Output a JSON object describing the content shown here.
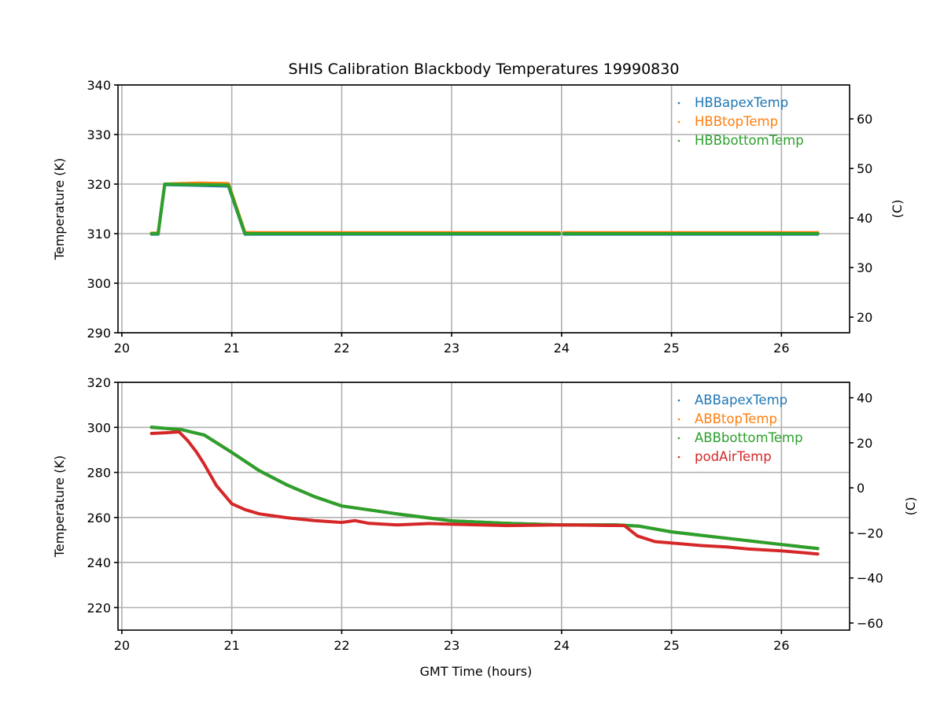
{
  "chart_data": [
    {
      "type": "line",
      "title": "SHIS Calibration Blackbody Temperatures 19990830",
      "xlabel": "",
      "ylabel": "Temperature (K)",
      "ylabel_right": "(C)",
      "xlim": [
        19.965,
        26.62
      ],
      "ylim": [
        290,
        340
      ],
      "xticks": [
        "20",
        "21",
        "22",
        "23",
        "24",
        "25",
        "26"
      ],
      "yticks": [
        "290",
        "300",
        "310",
        "320",
        "330",
        "340"
      ],
      "yticks_right": [
        "20",
        "30",
        "40",
        "50",
        "60"
      ],
      "grid": true,
      "legend_position": "top-right",
      "series": [
        {
          "name": "HBBapexTemp",
          "color": "#1f77b4",
          "x": [
            20.27,
            20.33,
            20.39,
            20.6,
            20.97,
            21.12,
            23.98,
            24.02,
            26.33
          ],
          "y": [
            309.9,
            309.9,
            319.9,
            319.8,
            319.6,
            309.9,
            309.9,
            309.9,
            309.9
          ]
        },
        {
          "name": "HBBtopTemp",
          "color": "#ff7f0e",
          "x": [
            20.27,
            20.33,
            20.39,
            20.7,
            20.97,
            21.12,
            23.98,
            24.02,
            26.33
          ],
          "y": [
            310.1,
            310.1,
            320.0,
            320.2,
            320.1,
            310.2,
            310.2,
            310.2,
            310.2
          ]
        },
        {
          "name": "HBBbottomTemp",
          "color": "#2ca02c",
          "x": [
            20.27,
            20.33,
            20.39,
            20.6,
            20.97,
            21.12,
            23.98,
            24.02,
            26.33
          ],
          "y": [
            310.0,
            310.0,
            320.0,
            319.9,
            319.8,
            310.0,
            310.0,
            310.0,
            310.0
          ]
        }
      ]
    },
    {
      "type": "line",
      "title": "",
      "xlabel": "GMT Time (hours)",
      "ylabel": "Temperature (K)",
      "ylabel_right": "(C)",
      "xlim": [
        19.965,
        26.62
      ],
      "ylim": [
        210,
        320
      ],
      "xticks": [
        "20",
        "21",
        "22",
        "23",
        "24",
        "25",
        "26"
      ],
      "yticks": [
        "220",
        "240",
        "260",
        "280",
        "300",
        "320"
      ],
      "yticks_right": [
        "−60",
        "−40",
        "−20",
        "0",
        "20",
        "40"
      ],
      "grid": true,
      "legend_position": "top-right",
      "series": [
        {
          "name": "ABBapexTemp",
          "color": "#1f77b4",
          "x": [
            20.27,
            20.54,
            20.75,
            21.0,
            21.25,
            21.5,
            21.75,
            22.0,
            22.5,
            23.0,
            23.5,
            24.0,
            24.5,
            24.7,
            25.0,
            25.5,
            26.0,
            26.33
          ],
          "y": [
            300.0,
            299.0,
            296.6,
            288.9,
            280.8,
            274.5,
            269.3,
            265.1,
            261.6,
            258.5,
            257.4,
            256.7,
            256.7,
            256.2,
            253.6,
            250.8,
            248.0,
            246.2
          ]
        },
        {
          "name": "ABBtopTemp",
          "color": "#ff7f0e",
          "x": [
            20.27,
            20.54,
            20.75,
            21.0,
            21.25,
            21.5,
            21.75,
            22.0,
            22.5,
            23.0,
            23.5,
            24.0,
            24.5,
            24.7,
            25.0,
            25.5,
            26.0,
            26.33
          ],
          "y": [
            300.0,
            299.0,
            296.6,
            288.9,
            280.8,
            274.5,
            269.3,
            265.1,
            261.6,
            258.5,
            257.4,
            256.7,
            256.7,
            256.2,
            253.6,
            250.8,
            248.0,
            246.2
          ]
        },
        {
          "name": "ABBbottomTemp",
          "color": "#2ca02c",
          "x": [
            20.27,
            20.54,
            20.75,
            21.0,
            21.25,
            21.5,
            21.75,
            22.0,
            22.5,
            23.0,
            23.5,
            24.0,
            24.5,
            24.7,
            25.0,
            25.5,
            26.0,
            26.33
          ],
          "y": [
            300.1,
            299.0,
            296.6,
            288.9,
            280.8,
            274.5,
            269.3,
            265.1,
            261.6,
            258.5,
            257.4,
            256.7,
            256.7,
            256.2,
            253.6,
            250.8,
            248.0,
            246.2
          ]
        },
        {
          "name": "podAirTemp",
          "color": "#d62728",
          "x": [
            20.27,
            20.4,
            20.52,
            20.6,
            20.68,
            20.75,
            20.86,
            21.0,
            21.12,
            21.25,
            21.5,
            21.75,
            22.0,
            22.12,
            22.25,
            22.5,
            22.8,
            23.0,
            23.5,
            24.0,
            24.3,
            24.57,
            24.69,
            24.85,
            25.0,
            25.25,
            25.5,
            25.7,
            26.0,
            26.33
          ],
          "y": [
            297.3,
            297.6,
            298.0,
            294.1,
            289.0,
            283.6,
            274.2,
            266.1,
            263.5,
            261.6,
            259.9,
            258.6,
            257.8,
            258.6,
            257.4,
            256.7,
            257.3,
            257.0,
            256.4,
            256.7,
            256.5,
            256.4,
            251.8,
            249.3,
            248.7,
            247.6,
            246.9,
            246.0,
            245.2,
            243.8
          ]
        }
      ]
    }
  ]
}
